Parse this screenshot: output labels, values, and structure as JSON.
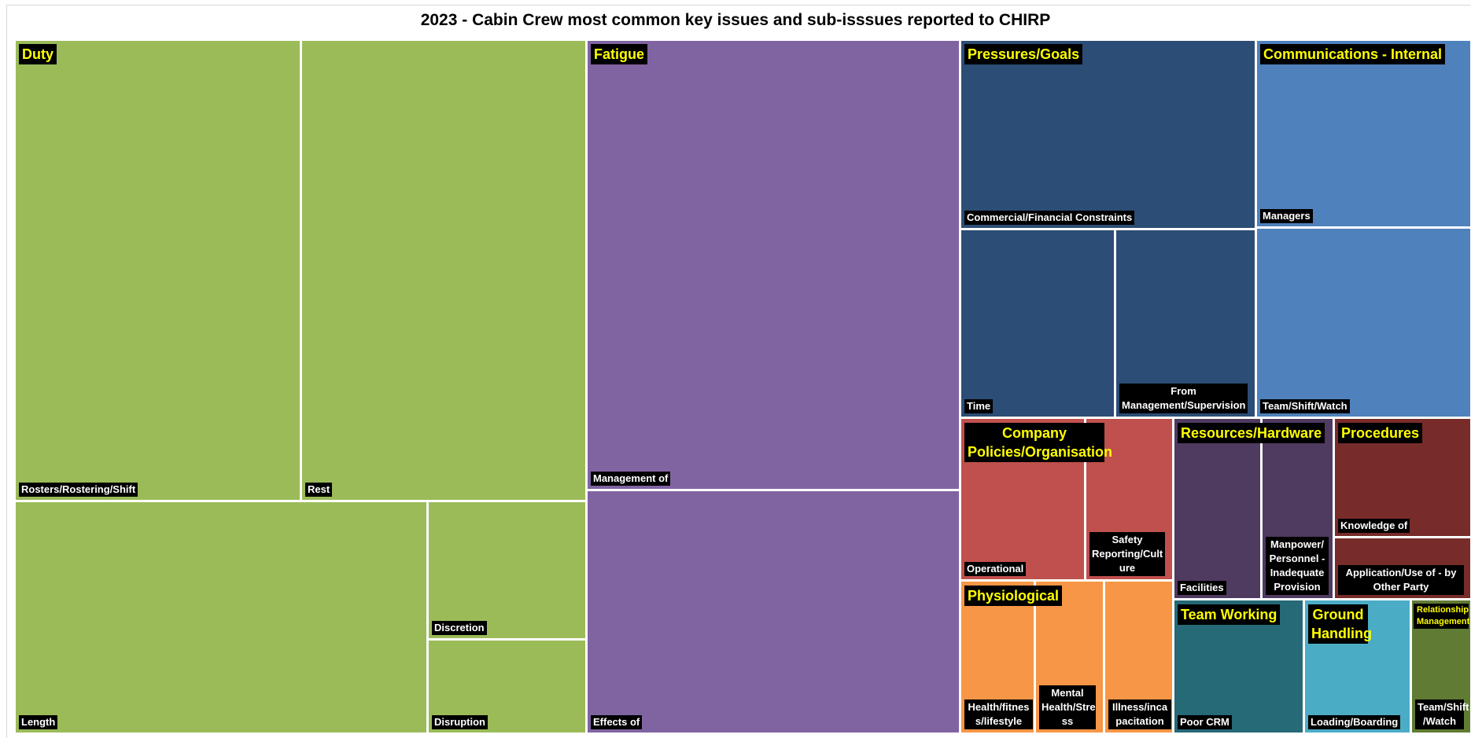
{
  "chart_data": {
    "type": "treemap",
    "title": "2023 - Cabin Crew most common key issues and sub-isssues reported to CHIRP",
    "groups": [
      {
        "name": "Duty",
        "color": "#9bbb59",
        "children": [
          "Rosters/Rostering/Shift",
          "Rest",
          "Length",
          "Discretion",
          "Disruption"
        ]
      },
      {
        "name": "Fatigue",
        "color": "#8064a2",
        "children": [
          "Management of",
          "Effects of"
        ]
      },
      {
        "name": "Pressures/Goals",
        "color": "#2c4d75",
        "children": [
          "Commercial/Financial Constraints",
          "Time",
          "From Management/Supervision"
        ]
      },
      {
        "name": "Communications - Internal",
        "color": "#4f81bd",
        "children": [
          "Managers",
          "Team/Shift/Watch"
        ]
      },
      {
        "name": "Company Policies/Organisation",
        "color": "#c0504d",
        "children": [
          "Operational",
          "Safety Reporting/Culture"
        ]
      },
      {
        "name": "Resources/Hardware",
        "color": "#4f3a60",
        "children": [
          "Facilities",
          "Manpower/ Personnel - Inadequate Provision"
        ]
      },
      {
        "name": "Procedures",
        "color": "#772c2a",
        "children": [
          "Knowledge of",
          "Application/Use of - by Other Party"
        ]
      },
      {
        "name": "Physiological",
        "color": "#f79646",
        "children": [
          "Health/fitness/lifestyle",
          "Mental Health/Stress",
          "Illness/incapacitation"
        ]
      },
      {
        "name": "Team Working",
        "color": "#266977",
        "children": [
          "Poor CRM"
        ]
      },
      {
        "name": "Ground Handling",
        "color": "#4bacc6",
        "children": [
          "Loading/Boarding"
        ]
      },
      {
        "name": "Relationship Management",
        "color": "#607b34",
        "children": [
          "Team/Shift/Watch"
        ]
      }
    ]
  }
}
